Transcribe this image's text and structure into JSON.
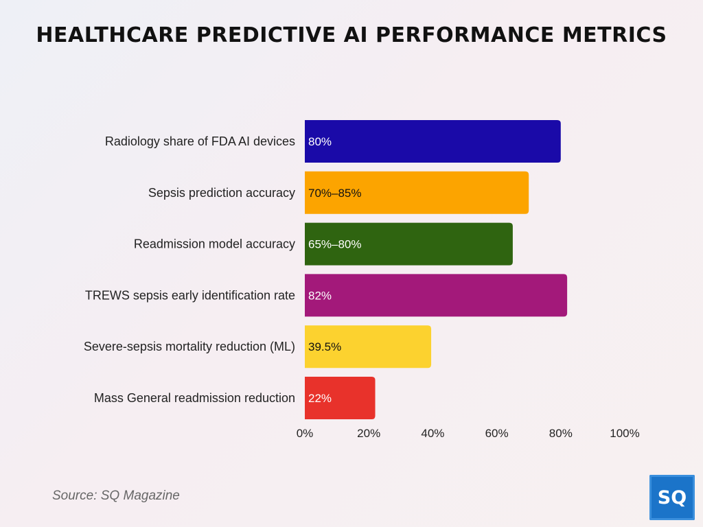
{
  "chart_data": {
    "type": "bar",
    "orientation": "horizontal",
    "title": "HEALTHCARE PREDICTIVE AI PERFORMANCE METRICS",
    "categories": [
      "Radiology share of FDA AI devices",
      "Sepsis prediction accuracy",
      "Readmission model accuracy",
      "TREWS sepsis early identification rate",
      "Severe-sepsis mortality reduction (ML)",
      "Mass General readmission reduction"
    ],
    "values": [
      80,
      70,
      65,
      82,
      39.5,
      22
    ],
    "value_labels": [
      "80%",
      "70%–85%",
      "65%–80%",
      "82%",
      "39.5%",
      "22%"
    ],
    "bar_colors": [
      "#1a0aa8",
      "#fca400",
      "#2f6410",
      "#a3197a",
      "#fcd22f",
      "#e8322b"
    ],
    "label_colors": [
      "#ffffff",
      "#111111",
      "#ffffff",
      "#ffffff",
      "#111111",
      "#ffffff"
    ],
    "xlim": [
      0,
      100
    ],
    "x_ticks": [
      0,
      20,
      40,
      60,
      80,
      100
    ],
    "x_tick_labels": [
      "0%",
      "20%",
      "40%",
      "60%",
      "80%",
      "100%"
    ],
    "xlabel": "",
    "ylabel": "",
    "grid": false,
    "legend": "none"
  },
  "source": "Source: SQ Magazine",
  "logo": {
    "text": "SQ",
    "color": "#1b74c9"
  }
}
